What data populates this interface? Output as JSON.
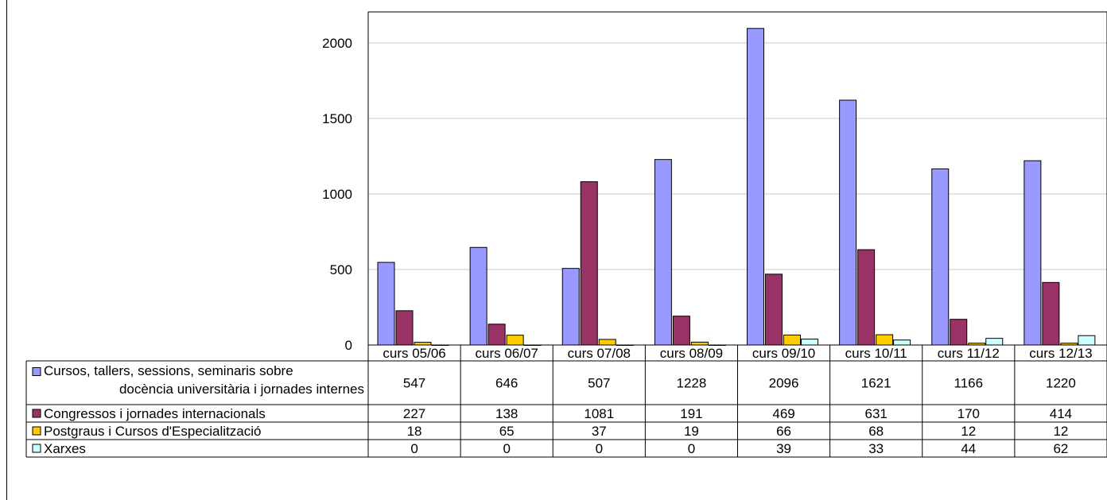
{
  "chart_data": {
    "type": "bar",
    "categories": [
      "curs 05/06",
      "curs 06/07",
      "curs 07/08",
      "curs 08/09",
      "curs 09/10",
      "curs 10/11",
      "curs 11/12",
      "curs 12/13"
    ],
    "series": [
      {
        "name": "Cursos, tallers, sessions, seminaris sobre docència universitària i jornades internes",
        "label_lines": [
          "Cursos, tallers, sessions, seminaris sobre",
          "docència universitària i jornades internes"
        ],
        "color": "#9999ff",
        "values": [
          547,
          646,
          507,
          1228,
          2096,
          1621,
          1166,
          1220
        ]
      },
      {
        "name": "Congressos i jornades internacionals",
        "label_lines": [
          "Congressos i jornades internacionals"
        ],
        "color": "#993366",
        "values": [
          227,
          138,
          1081,
          191,
          469,
          631,
          170,
          414
        ]
      },
      {
        "name": "Postgraus i Cursos d'Especialització",
        "label_lines": [
          "Postgraus i Cursos d'Especialització"
        ],
        "color": "#ffcc00",
        "values": [
          18,
          65,
          37,
          19,
          66,
          68,
          12,
          12
        ]
      },
      {
        "name": "Xarxes",
        "label_lines": [
          "Xarxes"
        ],
        "color": "#ccffff",
        "values": [
          0,
          0,
          0,
          0,
          39,
          33,
          44,
          62
        ]
      }
    ],
    "yticks": [
      0,
      500,
      1000,
      1500,
      2000
    ],
    "ylim": [
      0,
      2200
    ],
    "grid": true,
    "legend": "data-table",
    "title": "",
    "xlabel": "",
    "ylabel": ""
  }
}
